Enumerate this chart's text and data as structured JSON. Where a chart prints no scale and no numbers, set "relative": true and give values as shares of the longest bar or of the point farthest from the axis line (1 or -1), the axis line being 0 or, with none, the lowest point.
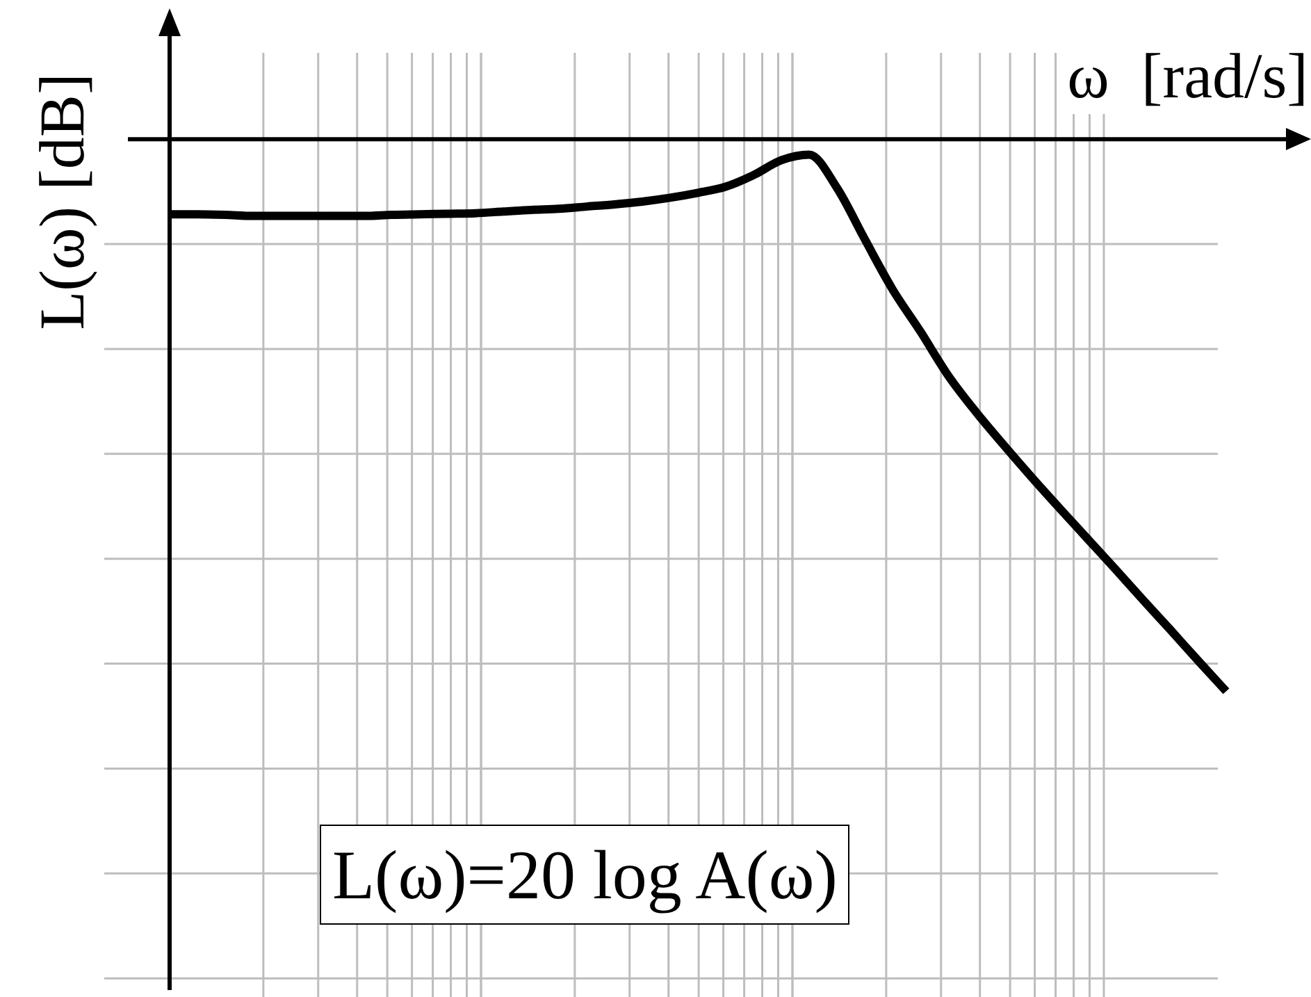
{
  "chart_data": {
    "type": "line",
    "xlabel": "ω  [rad/s]",
    "ylabel": "L(ω) [dB]",
    "annotations": [
      "L(ω)=20 log A(ω)"
    ],
    "relative": true,
    "grid": true,
    "color": "#000000",
    "categories": [
      null,
      null,
      null,
      null,
      null,
      null,
      null,
      null,
      null,
      null,
      null,
      null,
      null,
      null,
      null,
      null,
      null,
      null,
      null,
      null,
      null,
      null,
      null,
      null,
      null,
      null,
      null,
      null,
      null,
      null,
      null,
      null,
      null,
      null,
      null,
      null,
      null,
      null,
      null
    ],
    "values": [
      -0.136,
      -0.136,
      -0.137,
      -0.139,
      -0.139,
      -0.139,
      -0.139,
      -0.139,
      -0.137,
      -0.136,
      -0.135,
      -0.134,
      -0.131,
      -0.128,
      -0.126,
      -0.122,
      -0.118,
      -0.113,
      -0.106,
      -0.097,
      -0.086,
      -0.065,
      -0.038,
      -0.028,
      -0.088,
      -0.181,
      -0.272,
      -0.348,
      -0.428,
      -0.494,
      -0.554,
      -0.612,
      -0.668,
      -0.723,
      -0.778,
      -0.834,
      -0.889,
      -0.945,
      -1
    ]
  }
}
